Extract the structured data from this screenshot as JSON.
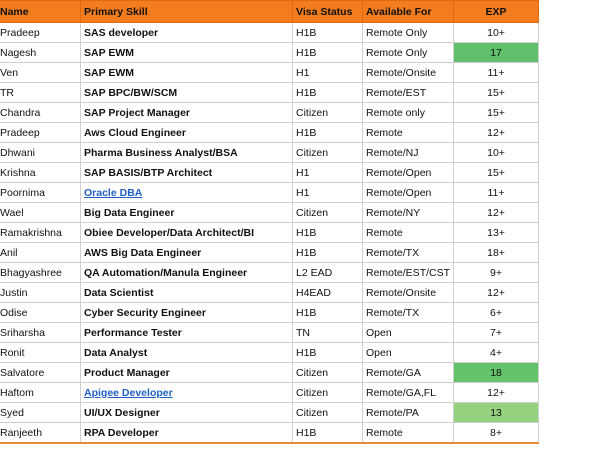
{
  "table": {
    "header": [
      "Name",
      "Primary Skill",
      "Visa Status",
      "Available For",
      "EXP"
    ],
    "rows": [
      [
        "Pradeep",
        "SAS developer",
        "H1B",
        "Remote Only",
        "10+"
      ],
      [
        "Nagesh",
        "SAP EWM",
        "H1B",
        "Remote Only",
        "17"
      ],
      [
        "Ven",
        "SAP EWM",
        "H1",
        "Remote/Onsite",
        "11+"
      ],
      [
        "TR",
        "SAP BPC/BW/SCM",
        "H1B",
        "Remote/EST",
        "15+"
      ],
      [
        "Chandra",
        "SAP Project Manager",
        "Citizen",
        "Remote only",
        "15+"
      ],
      [
        "Pradeep",
        "Aws Cloud Engineer",
        "H1B",
        "Remote",
        "12+"
      ],
      [
        "Dhwani",
        "Pharma Business Analyst/BSA",
        "Citizen",
        "Remote/NJ",
        "10+"
      ],
      [
        "Krishna",
        "SAP BASIS/BTP Architect",
        "H1",
        "Remote/Open",
        "15+"
      ],
      [
        "Poornima",
        "Oracle DBA",
        "H1",
        "Remote/Open",
        "11+"
      ],
      [
        "Wael",
        "Big Data Engineer",
        "Citizen",
        "Remote/NY",
        "12+"
      ],
      [
        "Ramakrishna",
        "Obiee Developer/Data Architect/BI",
        "H1B",
        "Remote",
        "13+"
      ],
      [
        "Anil",
        "AWS Big Data Engineer",
        "H1B",
        "Remote/TX",
        "18+"
      ],
      [
        "Bhagyashree",
        "QA Automation/Manula Engineer",
        "L2 EAD",
        "Remote/EST/CST",
        "9+"
      ],
      [
        "Justin",
        "Data Scientist",
        "H4EAD",
        "Remote/Onsite",
        "12+"
      ],
      [
        "Odise",
        "Cyber Security Engineer",
        "H1B",
        "Remote/TX",
        "6+"
      ],
      [
        "Sriharsha",
        "Performance Tester",
        "TN",
        "Open",
        "7+"
      ],
      [
        "Ronit",
        "Data Analyst",
        "H1B",
        "Open",
        "4+"
      ],
      [
        "Salvatore",
        "Product Manager",
        "Citizen",
        "Remote/GA",
        "18"
      ],
      [
        "Haftom",
        "Apigee Developer",
        "Citizen",
        "Remote/GA,FL",
        "12+"
      ],
      [
        "Syed",
        "UI/UX Designer",
        "Citizen",
        "Remote/PA",
        "13"
      ],
      [
        "Ranjeeth",
        "RPA Developer",
        "H1B",
        "Remote",
        "8+"
      ]
    ]
  }
}
